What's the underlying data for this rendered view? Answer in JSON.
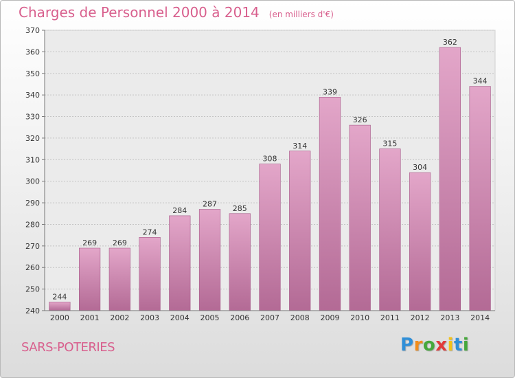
{
  "title": "Charges de Personnel 2000 à 2014",
  "subtitle": "(en milliers d'€)",
  "commune": "SARS-POTERIES",
  "logo": {
    "text": "Proxiti",
    "colors": [
      "#2f8fd8",
      "#f28c1a",
      "#46a83c",
      "#e23a3a",
      "#f2c21a",
      "#2f8fd8",
      "#46a83c"
    ]
  },
  "colors": {
    "bar_top": "#e3a6c9",
    "bar_bottom": "#b36a95",
    "bar_edge": "#a55a88",
    "title": "#d85f8d"
  },
  "chart_data": {
    "type": "bar",
    "categories": [
      "2000",
      "2001",
      "2002",
      "2003",
      "2004",
      "2005",
      "2006",
      "2007",
      "2008",
      "2009",
      "2010",
      "2011",
      "2012",
      "2013",
      "2014"
    ],
    "values": [
      244,
      269,
      269,
      274,
      284,
      287,
      285,
      308,
      314,
      339,
      326,
      315,
      304,
      362,
      344
    ],
    "ylim": [
      240,
      370
    ],
    "yticks": [
      240,
      250,
      260,
      270,
      280,
      290,
      300,
      310,
      320,
      330,
      340,
      350,
      360,
      370
    ],
    "grid": true,
    "legend": "none"
  }
}
